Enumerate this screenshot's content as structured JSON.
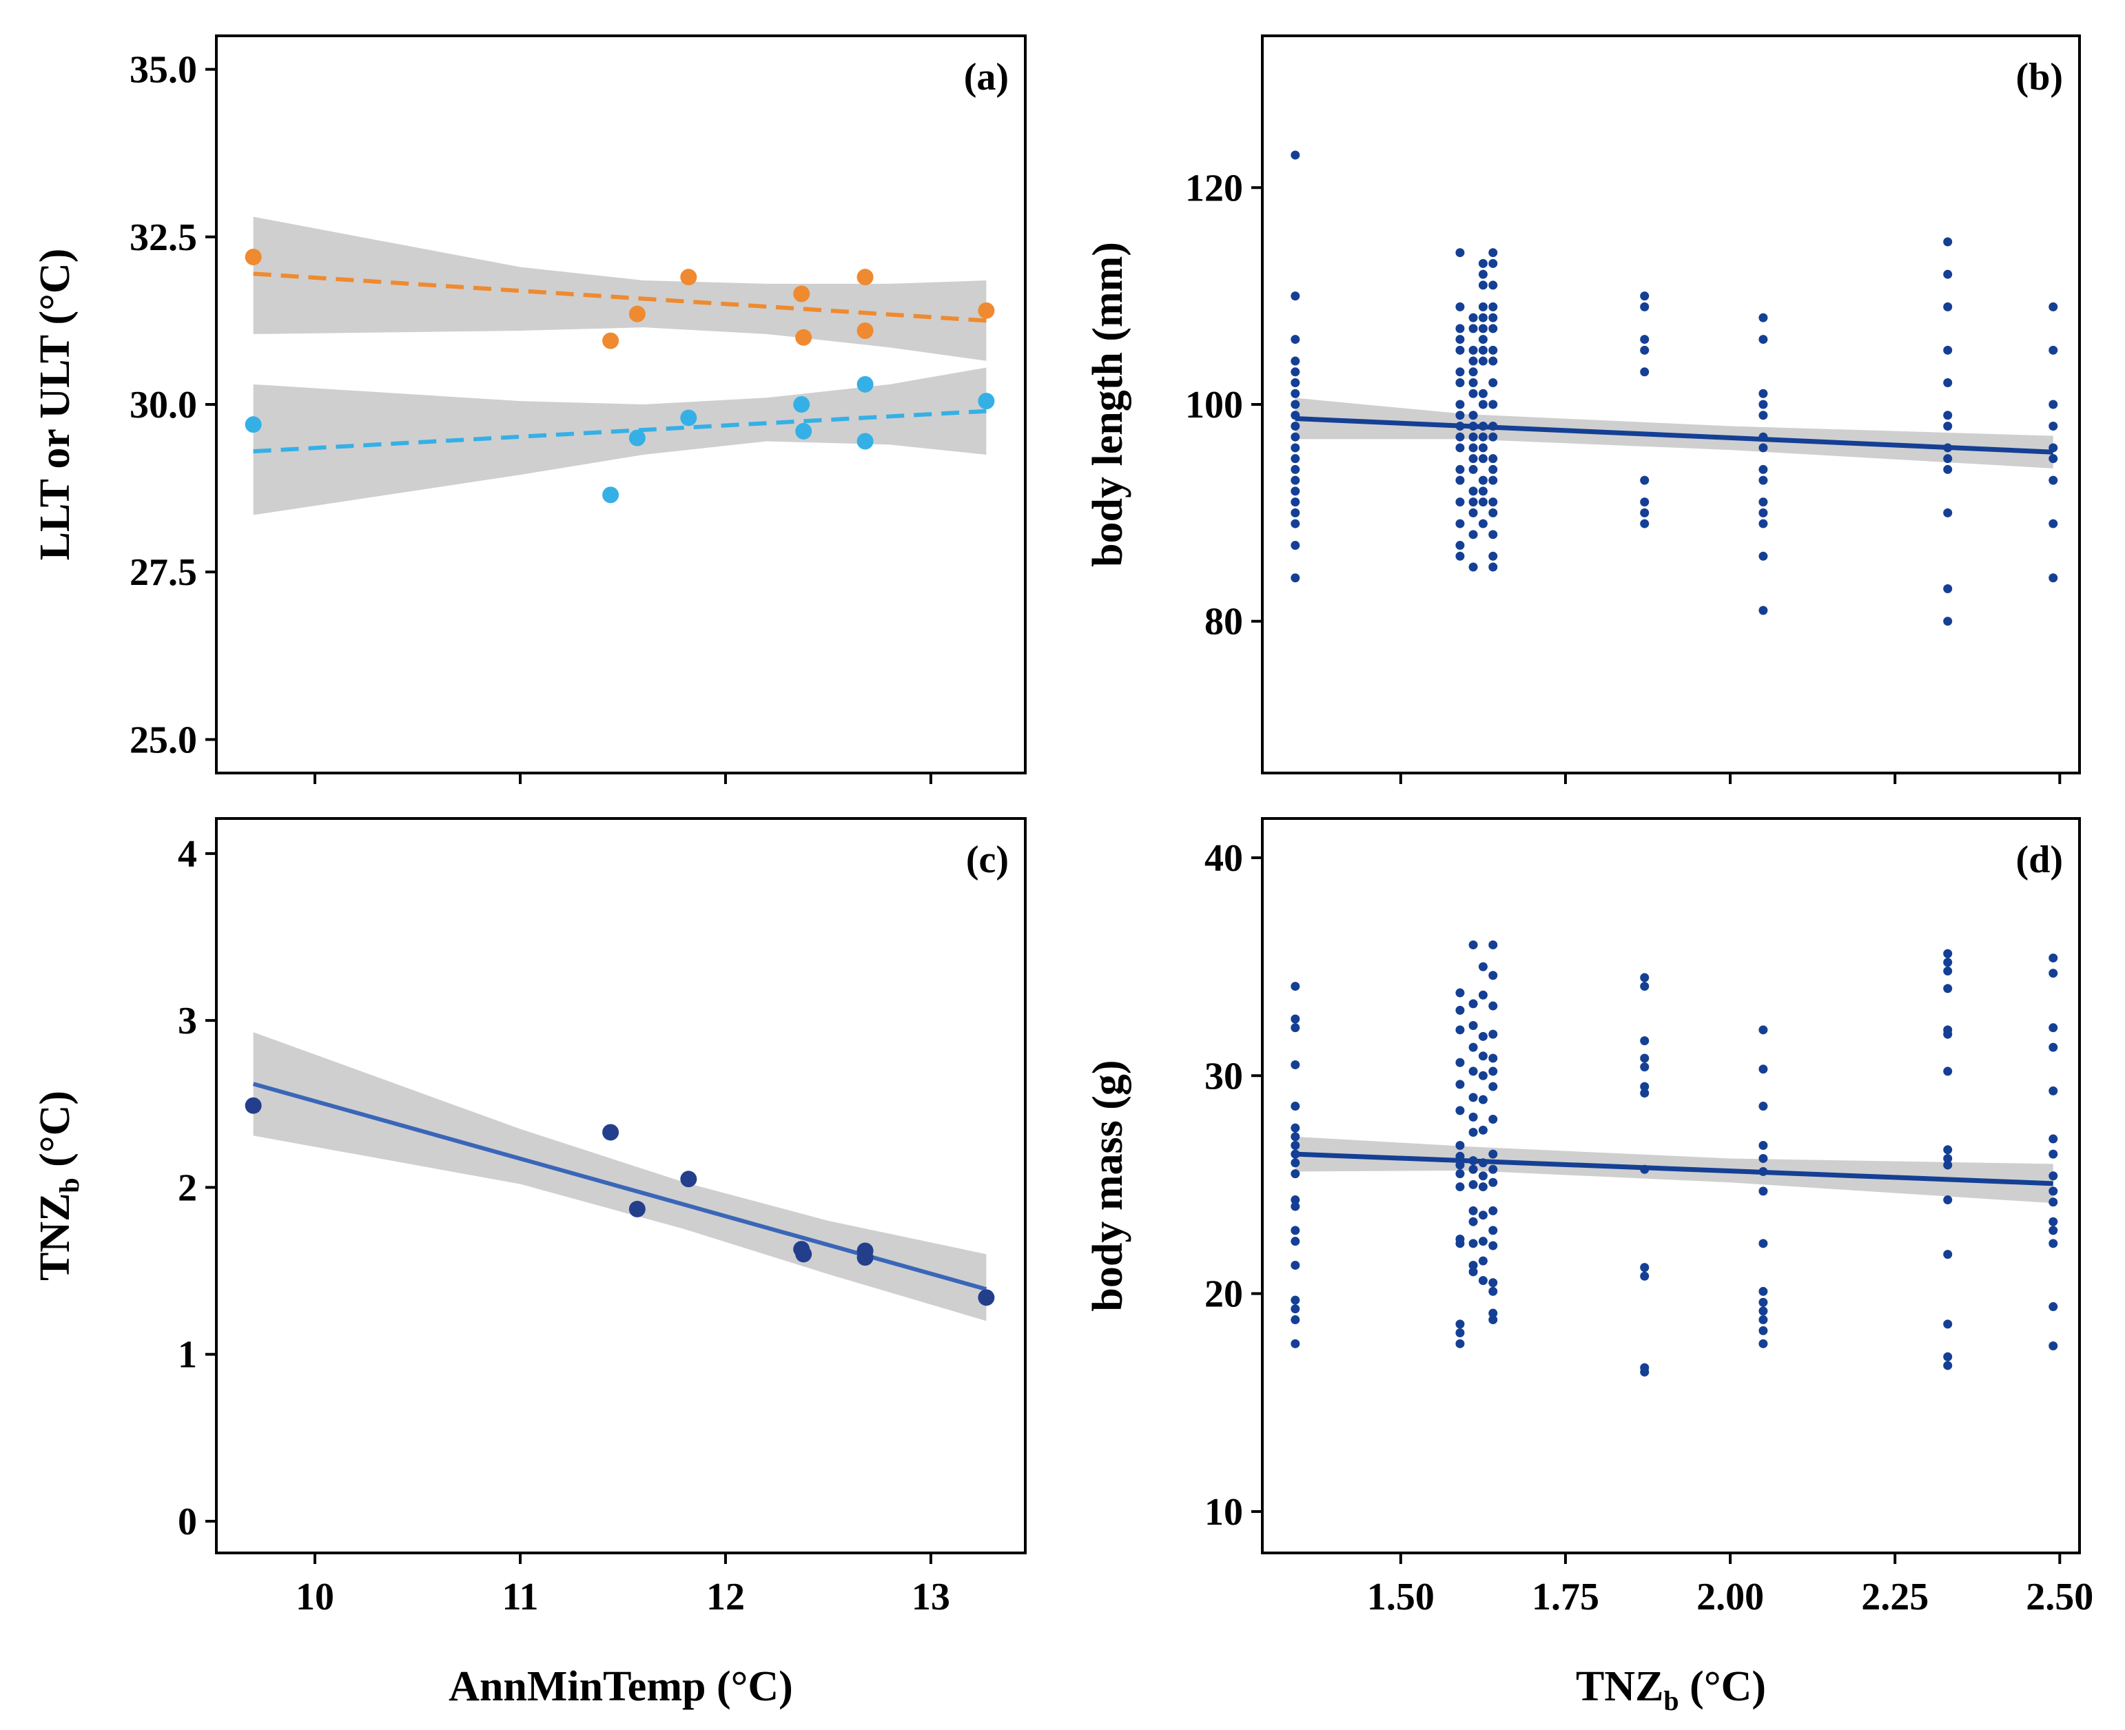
{
  "chart_data": [
    {
      "id": "a",
      "type": "scatter",
      "panel_label": "(a)",
      "xlabel": "",
      "ylabel": "LLT or ULT (°C)",
      "xlim": [
        9.52,
        13.46
      ],
      "ylim": [
        24.5,
        35.5
      ],
      "xticks": [],
      "yticks": [
        25.0,
        27.5,
        30.0,
        32.5,
        35.0
      ],
      "ytick_labels": [
        "25.0",
        "27.5",
        "30.0",
        "32.5",
        "35.0"
      ],
      "show_x_tickmarks": [
        10,
        11,
        12,
        13
      ],
      "series": [
        {
          "name": "ULT",
          "color": "#ef8a30",
          "line_color": "#ef8a30",
          "line_style": "dashed",
          "x": [
            9.7,
            11.44,
            11.57,
            11.82,
            12.37,
            12.38,
            12.68,
            12.68,
            13.27
          ],
          "y": [
            32.2,
            30.95,
            31.35,
            31.9,
            31.65,
            31.0,
            31.9,
            31.1,
            31.4
          ],
          "fit": {
            "x": [
              9.7,
              13.27
            ],
            "y": [
              31.95,
              31.25
            ]
          },
          "ci_upper": [
            [
              9.7,
              32.8
            ],
            [
              11.0,
              32.05
            ],
            [
              11.6,
              31.85
            ],
            [
              12.2,
              31.8
            ],
            [
              12.8,
              31.8
            ],
            [
              13.27,
              31.85
            ]
          ],
          "ci_lower": [
            [
              9.7,
              31.05
            ],
            [
              11.0,
              31.1
            ],
            [
              11.6,
              31.15
            ],
            [
              12.2,
              31.05
            ],
            [
              12.8,
              30.85
            ],
            [
              13.27,
              30.65
            ]
          ]
        },
        {
          "name": "LLT",
          "color": "#35b0e6",
          "line_color": "#35b0e6",
          "line_style": "dashed",
          "x": [
            9.7,
            11.44,
            11.57,
            11.82,
            12.37,
            12.38,
            12.68,
            12.68,
            13.27
          ],
          "y": [
            29.7,
            28.65,
            29.5,
            29.8,
            30.0,
            29.6,
            30.3,
            29.45,
            30.05
          ],
          "fit": {
            "x": [
              9.7,
              13.27
            ],
            "y": [
              29.3,
              29.9
            ]
          },
          "ci_upper": [
            [
              9.7,
              30.3
            ],
            [
              11.0,
              30.05
            ],
            [
              11.6,
              30.0
            ],
            [
              12.2,
              30.1
            ],
            [
              12.8,
              30.3
            ],
            [
              13.27,
              30.55
            ]
          ],
          "ci_lower": [
            [
              9.7,
              28.35
            ],
            [
              11.0,
              28.95
            ],
            [
              11.6,
              29.25
            ],
            [
              12.2,
              29.45
            ],
            [
              12.8,
              29.4
            ],
            [
              13.27,
              29.25
            ]
          ]
        }
      ]
    },
    {
      "id": "b",
      "type": "scatter",
      "panel_label": "(b)",
      "xlabel": "",
      "ylabel": "body length (mm)",
      "xlim": [
        1.29,
        2.53
      ],
      "ylim": [
        66,
        134
      ],
      "xticks": [],
      "yticks": [
        80,
        100,
        120
      ],
      "ytick_labels": [
        "80",
        "100",
        "120"
      ],
      "show_x_tickmarks": [
        1.5,
        1.75,
        2.0,
        2.25,
        2.5
      ],
      "series": [
        {
          "name": "body length",
          "color": "#143f94",
          "groups": [
            {
              "x": 1.34,
              "y": [
                84,
                87,
                89,
                90,
                91,
                92,
                93,
                94,
                95,
                96,
                97,
                98,
                99,
                100,
                101,
                102,
                103,
                104,
                106,
                110,
                123
              ]
            },
            {
              "x": 1.59,
              "y": [
                86,
                87,
                89,
                91,
                93,
                94,
                96,
                97,
                98,
                99,
                100,
                102,
                103,
                105,
                106,
                107,
                109,
                114
              ]
            },
            {
              "x": 1.61,
              "y": [
                85,
                88,
                90,
                91,
                92,
                94,
                95,
                96,
                97,
                98,
                99,
                101,
                102,
                103,
                104,
                105,
                107,
                108
              ]
            },
            {
              "x": 1.625,
              "y": [
                89,
                91,
                92,
                93,
                95,
                96,
                97,
                98,
                100,
                101,
                104,
                105,
                106,
                107,
                108,
                109,
                111,
                112,
                113
              ]
            },
            {
              "x": 1.64,
              "y": [
                85,
                86,
                88,
                90,
                91,
                93,
                94,
                95,
                97,
                98,
                100,
                102,
                104,
                105,
                107,
                108,
                109,
                111,
                113,
                114
              ]
            },
            {
              "x": 1.87,
              "y": [
                89,
                90,
                91,
                93,
                103,
                105,
                106,
                109,
                110
              ]
            },
            {
              "x": 2.05,
              "y": [
                81,
                86,
                89,
                90,
                91,
                93,
                94,
                96,
                97,
                99,
                100,
                101,
                106,
                108
              ]
            },
            {
              "x": 2.33,
              "y": [
                80,
                83,
                90,
                94,
                95,
                96,
                98,
                99,
                102,
                105,
                109,
                112,
                115
              ]
            },
            {
              "x": 2.49,
              "y": [
                84,
                89,
                93,
                95,
                96,
                98,
                100,
                105,
                109
              ]
            }
          ],
          "fit": {
            "x": [
              1.34,
              2.49
            ],
            "y": [
              98.7,
              95.6
            ]
          },
          "ci_upper": [
            [
              1.34,
              100.6
            ],
            [
              1.6,
              99.1
            ],
            [
              2.0,
              98.0
            ],
            [
              2.49,
              97.1
            ]
          ],
          "ci_lower": [
            [
              1.34,
              96.8
            ],
            [
              1.6,
              96.8
            ],
            [
              2.0,
              95.8
            ],
            [
              2.49,
              94.1
            ]
          ]
        }
      ]
    },
    {
      "id": "c",
      "type": "scatter",
      "panel_label": "(c)",
      "xlabel": "AnnMinTemp (°C)",
      "ylabel": "TNZb (°C)",
      "ylabel_main": "TNZ",
      "ylabel_sub": "b",
      "ylabel_tail": " (°C)",
      "xlim": [
        9.52,
        13.46
      ],
      "ylim": [
        -0.19,
        4.21
      ],
      "xticks": [
        10,
        11,
        12,
        13
      ],
      "xtick_labels": [
        "10",
        "11",
        "12",
        "13"
      ],
      "yticks": [
        0,
        1,
        2,
        3,
        4
      ],
      "ytick_labels": [
        "0",
        "1",
        "2",
        "3",
        "4"
      ],
      "series": [
        {
          "name": "TNZb",
          "color": "#233f8c",
          "line_color": "#3a66b8",
          "line_style": "solid",
          "x": [
            9.7,
            11.44,
            11.57,
            11.82,
            12.37,
            12.38,
            12.68,
            12.68,
            13.27
          ],
          "y": [
            2.49,
            2.33,
            1.87,
            2.05,
            1.63,
            1.6,
            1.62,
            1.58,
            1.34
          ],
          "fit": {
            "x": [
              9.7,
              13.27
            ],
            "y": [
              2.62,
              1.39
            ]
          },
          "ci_upper": [
            [
              9.7,
              2.93
            ],
            [
              11.0,
              2.35
            ],
            [
              11.8,
              2.03
            ],
            [
              12.5,
              1.8
            ],
            [
              13.27,
              1.6
            ]
          ],
          "ci_lower": [
            [
              9.7,
              2.31
            ],
            [
              11.0,
              2.02
            ],
            [
              11.8,
              1.75
            ],
            [
              12.5,
              1.48
            ],
            [
              13.27,
              1.2
            ]
          ]
        }
      ]
    },
    {
      "id": "d",
      "type": "scatter",
      "panel_label": "(d)",
      "xlabel": "TNZb (°C)",
      "xlabel_main": "TNZ",
      "xlabel_sub": "b",
      "xlabel_tail": " (°C)",
      "ylabel": "body mass (g)",
      "xlim": [
        1.29,
        2.53
      ],
      "ylim": [
        8.1,
        41.8
      ],
      "xticks": [
        1.5,
        1.75,
        2.0,
        2.25,
        2.5
      ],
      "xtick_labels": [
        "1.50",
        "1.75",
        "2.00",
        "2.25",
        "2.50"
      ],
      "yticks": [
        10,
        20,
        30,
        40
      ],
      "ytick_labels": [
        "10",
        "20",
        "30",
        "40"
      ],
      "series": [
        {
          "name": "body mass",
          "color": "#143f94",
          "groups": [
            {
              "x": 1.34,
              "y": [
                17.7,
                18.8,
                19.3,
                19.7,
                21.3,
                22.4,
                22.9,
                24.0,
                24.3,
                25.5,
                26.0,
                26.4,
                26.8,
                27.2,
                27.6,
                28.6,
                30.5,
                32.2,
                32.6,
                34.1
              ]
            },
            {
              "x": 1.59,
              "y": [
                17.7,
                18.2,
                18.6,
                22.3,
                22.5,
                24.9,
                25.5,
                25.9,
                26.3,
                26.8,
                28.4,
                29.6,
                30.6,
                32.1,
                33.0,
                33.8
              ]
            },
            {
              "x": 1.61,
              "y": [
                21.0,
                21.3,
                22.3,
                23.3,
                23.8,
                25.0,
                25.7,
                26.1,
                27.4,
                28.1,
                29.0,
                30.2,
                31.3,
                32.3,
                33.3,
                36.0
              ]
            },
            {
              "x": 1.625,
              "y": [
                20.6,
                21.5,
                22.4,
                23.6,
                24.9,
                25.4,
                26.0,
                27.5,
                28.9,
                30.0,
                30.9,
                31.8,
                33.7,
                35.0
              ]
            },
            {
              "x": 1.64,
              "y": [
                18.8,
                19.1,
                20.1,
                20.5,
                22.2,
                22.9,
                23.8,
                25.1,
                25.7,
                26.4,
                28.0,
                29.5,
                30.2,
                30.8,
                31.9,
                33.2,
                34.6,
                36.0
              ]
            },
            {
              "x": 1.87,
              "y": [
                16.4,
                16.6,
                20.8,
                21.2,
                25.7,
                29.2,
                29.5,
                30.4,
                30.8,
                31.6,
                34.1,
                34.5
              ]
            },
            {
              "x": 2.05,
              "y": [
                17.7,
                18.3,
                18.8,
                19.2,
                19.6,
                20.1,
                22.3,
                24.7,
                25.6,
                26.2,
                26.8,
                28.6,
                30.3,
                32.1
              ]
            },
            {
              "x": 2.33,
              "y": [
                16.7,
                17.1,
                18.6,
                21.8,
                24.3,
                25.9,
                26.2,
                26.6,
                30.2,
                31.9,
                32.1,
                34.0,
                34.8,
                35.2,
                35.6
              ]
            },
            {
              "x": 2.49,
              "y": [
                17.6,
                19.4,
                22.3,
                22.9,
                23.3,
                24.2,
                24.7,
                25.4,
                26.4,
                27.1,
                29.3,
                31.3,
                32.2,
                34.7,
                35.4
              ]
            }
          ],
          "fit": {
            "x": [
              1.34,
              2.49
            ],
            "y": [
              26.4,
              25.05
            ]
          },
          "ci_upper": [
            [
              1.34,
              27.2
            ],
            [
              1.6,
              26.75
            ],
            [
              2.0,
              26.2
            ],
            [
              2.49,
              25.95
            ]
          ],
          "ci_lower": [
            [
              1.34,
              25.6
            ],
            [
              1.6,
              25.65
            ],
            [
              2.0,
              25.1
            ],
            [
              2.49,
              24.15
            ]
          ]
        }
      ]
    }
  ]
}
